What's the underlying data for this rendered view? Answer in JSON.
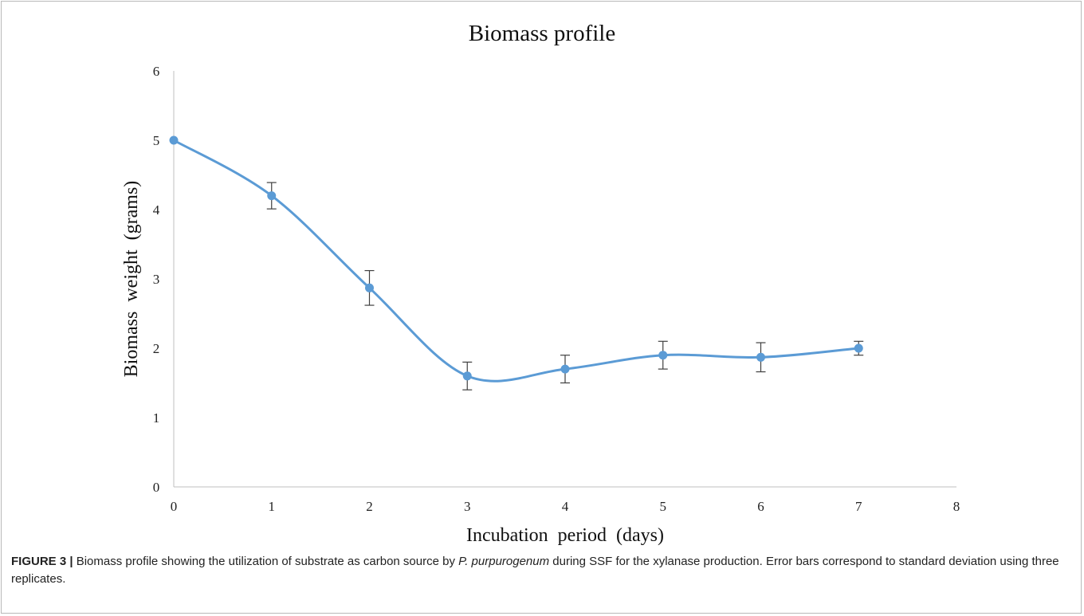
{
  "chart_data": {
    "type": "line",
    "title": "Biomass profile",
    "xlabel": "Incubation period (days)",
    "ylabel": "Biomass weight (grams)",
    "xlim": [
      0,
      8
    ],
    "ylim": [
      0,
      6
    ],
    "x_ticks": [
      0,
      1,
      2,
      3,
      4,
      5,
      6,
      7,
      8
    ],
    "y_ticks": [
      0,
      1,
      2,
      3,
      4,
      5,
      6
    ],
    "grid": false,
    "smooth": true,
    "series": [
      {
        "x": [
          0,
          1,
          2,
          3,
          4,
          5,
          6,
          7
        ],
        "y": [
          5.0,
          4.2,
          2.87,
          1.6,
          1.7,
          1.9,
          1.87,
          2.0
        ],
        "error": [
          0,
          0.19,
          0.25,
          0.2,
          0.2,
          0.2,
          0.21,
          0.1
        ],
        "color": "#5b9bd5"
      }
    ]
  },
  "caption": {
    "label": "FIGURE 3 |",
    "text_before": " Biomass profile showing the utilization of substrate as carbon source by ",
    "organism": "P. purpurogenum",
    "text_after": " during SSF for the xylanase production. Error bars correspond to standard deviation using three replicates."
  }
}
